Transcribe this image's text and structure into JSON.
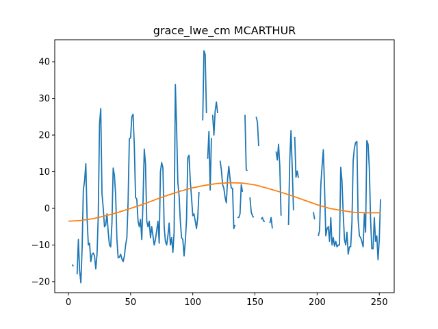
{
  "chart_data": {
    "type": "line",
    "title": "grace_lwe_cm MCARTHUR",
    "xlabel": "",
    "ylabel": "",
    "xlim": [
      -11,
      262
    ],
    "ylim": [
      -23,
      46
    ],
    "xticks": [
      0,
      50,
      100,
      150,
      200,
      250
    ],
    "yticks": [
      -20,
      -10,
      0,
      10,
      20,
      30,
      40
    ],
    "grid": false,
    "legend": "none",
    "series": [
      {
        "color": "#1f77b4",
        "points": [
          [
            3,
            -15.3
          ],
          [
            4,
            -15.8
          ],
          null,
          [
            7,
            -18
          ],
          [
            8,
            -8.5
          ],
          [
            9,
            -17
          ],
          [
            10,
            -20.3
          ],
          [
            11,
            -11
          ],
          [
            12,
            5
          ],
          [
            13,
            7.5
          ],
          [
            14,
            12.2
          ],
          [
            15,
            -2.5
          ],
          [
            16,
            -10
          ],
          [
            17,
            -9.5
          ],
          [
            18,
            -14.5
          ],
          [
            19,
            -12.5
          ],
          [
            20,
            -12.2
          ],
          [
            21,
            -13
          ],
          [
            22,
            -16.5
          ],
          [
            23,
            -12.5
          ],
          [
            24,
            -2
          ],
          [
            25,
            23
          ],
          [
            26,
            27.2
          ],
          [
            27,
            4
          ],
          [
            28,
            0
          ],
          [
            29,
            -5
          ],
          [
            30,
            -4.5
          ],
          [
            31,
            -1.5
          ],
          [
            32,
            -6.5
          ],
          [
            33,
            -10
          ],
          [
            34,
            -10.5
          ],
          [
            35,
            -4
          ],
          [
            36,
            11
          ],
          [
            37,
            9
          ],
          [
            38,
            3.5
          ],
          [
            39,
            -8.5
          ],
          [
            40,
            -13.5
          ],
          [
            41,
            -13.3
          ],
          [
            42,
            -12.5
          ],
          [
            43,
            -13.8
          ],
          [
            44,
            -14.5
          ],
          [
            45,
            -13
          ],
          [
            46,
            -10
          ],
          [
            47,
            -8
          ],
          [
            48,
            2
          ],
          [
            49,
            19
          ],
          [
            50,
            19.2
          ],
          [
            51,
            25
          ],
          [
            52,
            25.7
          ],
          [
            53,
            17
          ],
          [
            54,
            3
          ],
          [
            55,
            2.5
          ],
          [
            56,
            -3.5
          ],
          [
            57,
            -5
          ],
          [
            58,
            -3
          ],
          [
            59,
            -8.5
          ],
          [
            60,
            2
          ],
          [
            61,
            16.2
          ],
          [
            62,
            12
          ],
          [
            63,
            -3.5
          ],
          [
            64,
            -5
          ],
          [
            65,
            -3.5
          ],
          [
            66,
            -8
          ],
          [
            67,
            -5
          ],
          [
            68,
            -7.5
          ],
          [
            69,
            -10
          ],
          [
            70,
            -8.5
          ],
          [
            71,
            -6
          ],
          [
            72,
            -3.5
          ],
          [
            73,
            -9.5
          ],
          [
            74,
            10
          ],
          [
            75,
            12.5
          ],
          [
            76,
            11
          ],
          [
            77,
            -5
          ],
          [
            78,
            -9
          ],
          [
            79,
            -10
          ],
          [
            80,
            -7.5
          ],
          [
            81,
            -4
          ],
          [
            82,
            -10
          ],
          [
            83,
            -8
          ],
          [
            84,
            -12
          ],
          [
            85,
            -6.5
          ],
          [
            86,
            33.8
          ],
          [
            87,
            22
          ],
          [
            88,
            7
          ],
          [
            89,
            3.5
          ],
          [
            90,
            -3.5
          ],
          [
            91,
            -8
          ],
          [
            92,
            -8.5
          ],
          [
            93,
            -13
          ],
          [
            94,
            -9
          ],
          [
            95,
            -3
          ],
          [
            96,
            13.8
          ],
          [
            97,
            14.5
          ],
          [
            98,
            7.5
          ],
          [
            99,
            3
          ],
          [
            100,
            -2
          ],
          [
            101,
            -1.5
          ],
          [
            102,
            -3.5
          ],
          [
            103,
            -5.5
          ],
          [
            104,
            -2.5
          ],
          [
            105,
            4.5
          ],
          null,
          [
            108,
            24
          ],
          [
            109,
            43
          ],
          [
            110,
            42
          ],
          [
            111,
            26
          ],
          null,
          [
            112,
            13.5
          ],
          [
            113,
            21
          ],
          [
            114,
            5
          ],
          [
            115,
            19.2
          ],
          null,
          [
            116,
            25.5
          ],
          [
            117,
            20
          ],
          [
            118,
            26.5
          ],
          [
            119,
            29
          ],
          [
            120,
            26
          ],
          null,
          [
            122,
            13
          ],
          [
            123,
            10.5
          ],
          [
            124,
            6.5
          ],
          [
            125,
            5.5
          ],
          [
            126,
            3
          ],
          [
            127,
            1.5
          ],
          [
            128,
            8
          ],
          [
            129,
            11.5
          ],
          [
            130,
            8
          ],
          [
            131,
            5.5
          ],
          [
            132,
            5.5
          ],
          [
            133,
            -5.5
          ],
          [
            134,
            -4.5
          ],
          null,
          [
            136,
            -2.5
          ],
          [
            137,
            -2.5
          ],
          [
            138,
            -1.5
          ],
          [
            139,
            6.5
          ],
          [
            140,
            4.5
          ],
          null,
          [
            142,
            25.5
          ],
          [
            143,
            10.5
          ],
          [
            144,
            10.3
          ],
          null,
          [
            146,
            3
          ],
          [
            147,
            -1
          ],
          [
            148,
            -2
          ],
          [
            149,
            -2.5
          ],
          null,
          [
            151,
            25
          ],
          [
            152,
            23.5
          ],
          [
            153,
            17
          ],
          null,
          [
            155,
            -3
          ],
          [
            156,
            -2.5
          ],
          [
            157,
            -3.5
          ],
          [
            158,
            -3.5
          ],
          null,
          [
            162,
            -4
          ],
          [
            163,
            -2.5
          ],
          [
            164,
            -5.5
          ],
          null,
          [
            167,
            15.5
          ],
          [
            168,
            13.2
          ],
          [
            169,
            17.5
          ],
          [
            170,
            11.5
          ],
          [
            171,
            -2
          ],
          null,
          [
            177,
            -4.5
          ],
          [
            178,
            13
          ],
          [
            179,
            21.2
          ],
          [
            180,
            11
          ],
          [
            181,
            -0.5
          ],
          null,
          [
            182,
            19.5
          ],
          [
            183,
            8.5
          ],
          [
            184,
            10.2
          ],
          [
            185,
            8.3
          ],
          null,
          [
            197,
            -1
          ],
          [
            198,
            -3
          ],
          null,
          [
            201,
            -7.5
          ],
          [
            202,
            -6
          ],
          [
            203,
            6.5
          ],
          [
            204,
            11.5
          ],
          [
            205,
            16
          ],
          [
            206,
            5.5
          ],
          [
            207,
            -7.5
          ],
          [
            208,
            -5.5
          ],
          [
            209,
            -5
          ],
          [
            210,
            -9
          ],
          [
            211,
            -2.5
          ],
          [
            212,
            -10
          ],
          [
            213,
            -8
          ],
          [
            214,
            -10.3
          ],
          [
            215,
            -9
          ],
          [
            216,
            -10.5
          ],
          [
            217,
            -10
          ],
          [
            218,
            -10
          ],
          [
            219,
            11.2
          ],
          [
            220,
            7.5
          ],
          [
            221,
            -1.5
          ],
          [
            222,
            -8.5
          ],
          [
            223,
            -10
          ],
          [
            224,
            -6.5
          ],
          [
            225,
            -12.5
          ],
          [
            226,
            -10.5
          ],
          [
            227,
            -10.5
          ],
          [
            228,
            -4
          ],
          [
            229,
            13
          ],
          [
            230,
            16.5
          ],
          [
            231,
            18
          ],
          [
            232,
            18.2
          ],
          [
            233,
            -3
          ],
          [
            234,
            -7.5
          ],
          [
            235,
            -8
          ],
          [
            236,
            -9
          ],
          [
            237,
            -10.5
          ],
          [
            238,
            -1.5
          ],
          [
            239,
            -6.5
          ],
          [
            240,
            18.5
          ],
          [
            241,
            17.5
          ],
          [
            242,
            11
          ],
          [
            243,
            -3
          ],
          [
            244,
            -11
          ],
          [
            245,
            -11
          ],
          [
            246,
            -2.5
          ],
          [
            247,
            -9
          ],
          [
            248,
            -7.5
          ],
          [
            249,
            -14
          ],
          [
            250,
            -8.5
          ],
          [
            251,
            2.5
          ]
        ]
      },
      {
        "color": "#ff7f0e",
        "points": [
          [
            0,
            -3.5
          ],
          [
            10,
            -3.3
          ],
          [
            20,
            -2.8
          ],
          [
            30,
            -2
          ],
          [
            40,
            -1.1
          ],
          [
            50,
            0
          ],
          [
            60,
            1.1
          ],
          [
            70,
            2.4
          ],
          [
            80,
            3.6
          ],
          [
            90,
            4.7
          ],
          [
            100,
            5.6
          ],
          [
            110,
            6.3
          ],
          [
            120,
            6.8
          ],
          [
            130,
            7.0
          ],
          [
            140,
            6.9
          ],
          [
            150,
            6.4
          ],
          [
            160,
            5.5
          ],
          [
            170,
            4.5
          ],
          [
            180,
            3.4
          ],
          [
            190,
            2.2
          ],
          [
            200,
            1
          ],
          [
            210,
            0
          ],
          [
            220,
            -0.6
          ],
          [
            230,
            -1.1
          ],
          [
            240,
            -1.2
          ],
          [
            251,
            -1.2
          ]
        ]
      }
    ]
  }
}
